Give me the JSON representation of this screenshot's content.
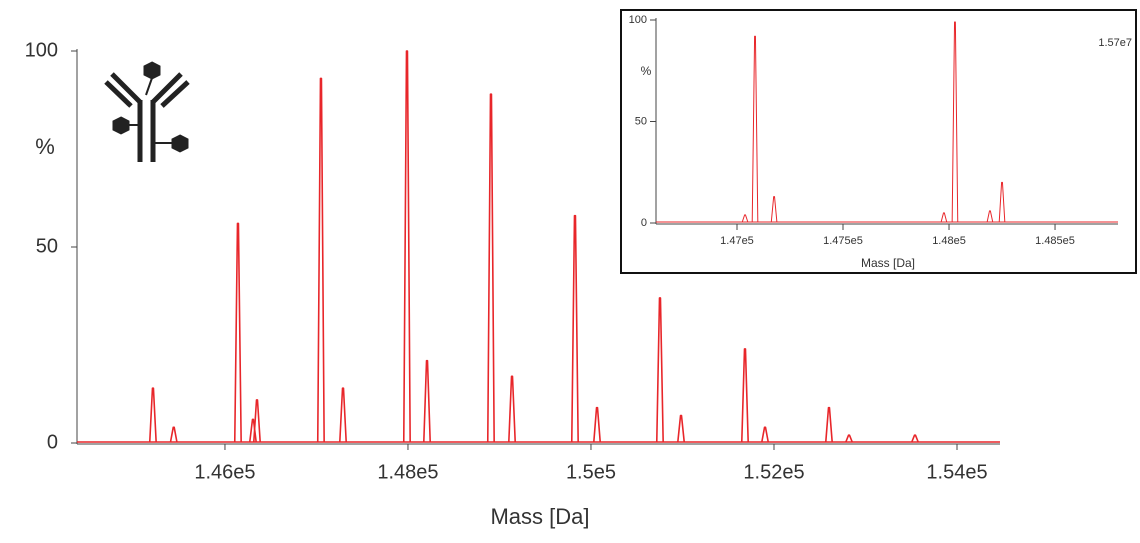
{
  "chart_data": [
    {
      "type": "spectrum",
      "xlabel": "Mass [Da]",
      "ylabel": "%",
      "color": "#e8262a",
      "x": [
        145213,
        145440,
        146142,
        146306,
        146350,
        147049,
        147290,
        147989,
        148208,
        148907,
        149137,
        149825,
        150066,
        150754,
        150984,
        151683,
        151902,
        152601,
        152820,
        153541
      ],
      "values": [
        14,
        4,
        56,
        6,
        11,
        93,
        14,
        100,
        21,
        89,
        17,
        58,
        9,
        37,
        7,
        24,
        4,
        9,
        2,
        2
      ],
      "xlim": [
        144383,
        154470
      ],
      "ylim": [
        0,
        100
      ],
      "xticks": [
        {
          "value": 146000,
          "label": "1.46e5"
        },
        {
          "value": 148000,
          "label": "1.48e5"
        },
        {
          "value": 150000,
          "label": "1.5e5"
        },
        {
          "value": 152000,
          "label": "1.52e5"
        },
        {
          "value": 154000,
          "label": "1.54e5"
        }
      ],
      "yticks": [
        0,
        50,
        100
      ]
    },
    {
      "type": "spectrum",
      "xlabel": "Mass [Da]",
      "ylabel": "%",
      "annotation": "1.57e7",
      "color": "#e8262a",
      "x": [
        147038,
        147085,
        147175,
        147976,
        148028,
        148193,
        148250
      ],
      "values": [
        4,
        92,
        13,
        5,
        99,
        6,
        20
      ],
      "xlim": [
        146618,
        148797
      ],
      "ylim": [
        0,
        100
      ],
      "xticks": [
        {
          "value": 147000,
          "label": "1.47e5"
        },
        {
          "value": 147500,
          "label": "1.475e5"
        },
        {
          "value": 148000,
          "label": "1.48e5"
        },
        {
          "value": 148500,
          "label": "1.485e5"
        }
      ],
      "yticks": [
        0,
        50,
        100
      ]
    }
  ]
}
